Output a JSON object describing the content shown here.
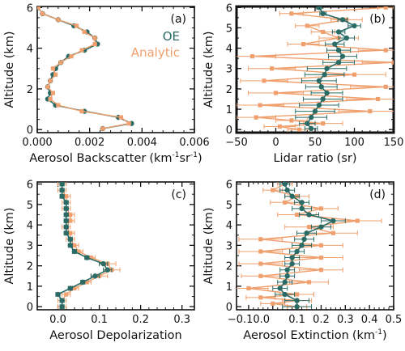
{
  "colors": {
    "oe": "#2b6b66",
    "analytic": "#f0a06e",
    "axis": "#111111"
  },
  "chart_data": [
    {
      "type": "line",
      "panel_label": "(a)",
      "xlabel": "Aerosol Backscatter",
      "xunit_prefix": "(km",
      "xunit_sup1": "-1",
      "xunit_mid": "sr",
      "xunit_sup2": "-1",
      "xunit_suffix": ")",
      "ylabel": "Altitude (km)",
      "xlim": [
        0.0,
        0.006
      ],
      "ylim": [
        -0.15,
        6.05
      ],
      "xticks": [
        0.0,
        0.002,
        0.004,
        0.006
      ],
      "xtick_labels": [
        "0.000",
        "0.002",
        "0.004",
        "0.006"
      ],
      "yticks": [
        0,
        2,
        4,
        6
      ],
      "ytick_labels": [
        "0",
        "2",
        "4",
        "6"
      ],
      "legend": {
        "placement": "right",
        "entries": [
          "OE",
          "Analytic"
        ]
      },
      "series": [
        {
          "name": "OE",
          "style": "line-dots",
          "y": [
            0.05,
            0.3,
            0.6,
            0.9,
            1.2,
            1.5,
            1.8,
            2.1,
            2.4,
            2.7,
            3.0,
            3.3,
            3.6,
            3.9,
            4.2,
            4.5,
            4.8,
            5.1,
            5.4,
            5.7,
            6.0
          ],
          "x": [
            0.0025,
            0.0036,
            0.0031,
            0.0018,
            0.0007,
            0.0004,
            0.0005,
            0.0004,
            0.0005,
            0.0006,
            0.0007,
            0.0009,
            0.0012,
            0.0018,
            0.0023,
            0.0022,
            0.0019,
            0.0014,
            0.0008,
            0.0002,
            3e-05
          ]
        },
        {
          "name": "Analytic",
          "style": "line-squares",
          "y": [
            0.05,
            0.3,
            0.6,
            0.9,
            1.2,
            1.5,
            1.8,
            2.1,
            2.4,
            2.7,
            3.0,
            3.3,
            3.6,
            3.9,
            4.2,
            4.5,
            4.8,
            5.1,
            5.4,
            5.7,
            6.0
          ],
          "x": [
            0.0025,
            0.0035,
            0.0032,
            0.0017,
            0.0008,
            0.0005,
            0.0006,
            0.0004,
            0.0005,
            0.0007,
            0.0006,
            0.0009,
            0.0013,
            0.0017,
            0.0022,
            0.0022,
            0.0018,
            0.0015,
            0.0008,
            0.0002,
            4e-05
          ]
        }
      ]
    },
    {
      "type": "line",
      "panel_label": "(b)",
      "xlabel": "Lidar ratio",
      "xunit": "(sr)",
      "ylabel": "Altitude (km)",
      "xlim": [
        -50,
        150
      ],
      "ylim": [
        -0.15,
        6.05
      ],
      "xticks": [
        -50,
        0,
        50,
        100,
        150
      ],
      "xtick_labels": [
        "−50",
        "0",
        "50",
        "100",
        "150"
      ],
      "yticks": [
        0,
        1,
        2,
        3,
        4,
        5,
        6
      ],
      "ytick_labels": [
        "0",
        "1",
        "2",
        "3",
        "4",
        "5",
        "6"
      ],
      "series": [
        {
          "name": "Analytic",
          "style": "line-squares",
          "y": [
            0.0,
            0.15,
            0.3,
            0.45,
            0.6,
            0.9,
            1.2,
            1.5,
            1.8,
            2.1,
            2.4,
            2.7,
            3.0,
            3.3,
            3.6,
            3.9,
            4.2,
            4.5,
            4.8,
            5.1,
            5.4,
            5.7,
            6.0
          ],
          "x": [
            30,
            5,
            60,
            20,
            -25,
            120,
            -20,
            130,
            0,
            140,
            -15,
            100,
            -5,
            150,
            -30,
            140,
            35,
            80,
            60,
            40,
            90,
            20,
            140
          ],
          "xerr": [
            15,
            20,
            25,
            20,
            25,
            40,
            30,
            40,
            35,
            45,
            30,
            40,
            30,
            40,
            30,
            35,
            20,
            25,
            15,
            15,
            20,
            15,
            10
          ]
        },
        {
          "name": "OE",
          "style": "line-dots",
          "y": [
            0.05,
            0.3,
            0.6,
            0.9,
            1.2,
            1.5,
            1.8,
            2.1,
            2.4,
            2.7,
            3.0,
            3.3,
            3.6,
            3.9,
            4.2,
            4.5,
            4.8,
            5.1,
            5.4,
            5.7,
            6.0
          ],
          "x": [
            45,
            40,
            45,
            50,
            55,
            60,
            65,
            58,
            55,
            62,
            65,
            80,
            85,
            80,
            75,
            90,
            80,
            100,
            85,
            60,
            55
          ],
          "xerr": [
            8,
            10,
            20,
            25,
            25,
            25,
            20,
            20,
            22,
            25,
            25,
            20,
            18,
            15,
            12,
            10,
            8,
            8,
            6,
            4,
            3
          ]
        }
      ]
    },
    {
      "type": "line",
      "panel_label": "(c)",
      "xlabel": "Aerosol Depolarization",
      "ylabel": "Altitude (km)",
      "xlim": [
        -0.05,
        0.33
      ],
      "ylim": [
        -0.15,
        6.1
      ],
      "xticks": [
        0.0,
        0.1,
        0.2,
        0.3
      ],
      "xtick_labels": [
        "0.0",
        "0.1",
        "0.2",
        "0.3"
      ],
      "yticks": [
        0,
        1,
        2,
        3,
        4,
        5,
        6
      ],
      "ytick_labels": [
        "0",
        "1",
        "2",
        "3",
        "4",
        "5",
        "6"
      ],
      "series": [
        {
          "name": "Analytic",
          "style": "line-squares",
          "y": [
            0.0,
            0.3,
            0.6,
            0.9,
            1.2,
            1.5,
            1.8,
            2.1,
            2.4,
            2.7,
            3.0,
            3.3,
            3.6,
            3.9,
            4.2,
            4.5,
            4.8,
            5.1,
            5.4,
            5.7,
            6.0
          ],
          "x": [
            0.01,
            0.01,
            0.02,
            0.04,
            0.07,
            0.1,
            0.13,
            0.12,
            0.08,
            0.05,
            0.04,
            0.03,
            0.03,
            0.02,
            0.03,
            0.03,
            0.02,
            0.02,
            0.02,
            0.01,
            0.01
          ],
          "xerr": [
            0.01,
            0.01,
            0.01,
            0.01,
            0.01,
            0.02,
            0.02,
            0.02,
            0.01,
            0.01,
            0.01,
            0.01,
            0.01,
            0.01,
            0.01,
            0.01,
            0.01,
            0.01,
            0.01,
            0.01,
            0.01
          ]
        },
        {
          "name": "OE",
          "style": "line-dots",
          "y": [
            0.0,
            0.3,
            0.6,
            0.9,
            1.2,
            1.5,
            1.8,
            2.1,
            2.4,
            2.7,
            3.0,
            3.3,
            3.6,
            3.9,
            4.2,
            4.5,
            4.8,
            5.1,
            5.4,
            5.7,
            6.0
          ],
          "x": [
            0.01,
            0.01,
            0.0,
            0.03,
            0.06,
            0.09,
            0.12,
            0.11,
            0.07,
            0.04,
            0.03,
            0.03,
            0.02,
            0.02,
            0.02,
            0.02,
            0.02,
            0.02,
            0.01,
            0.01,
            0.01
          ],
          "xerr": [
            0.005,
            0.005,
            0.005,
            0.005,
            0.005,
            0.01,
            0.01,
            0.01,
            0.005,
            0.005,
            0.005,
            0.005,
            0.005,
            0.005,
            0.005,
            0.005,
            0.005,
            0.005,
            0.005,
            0.005,
            0.005
          ]
        }
      ]
    },
    {
      "type": "line",
      "panel_label": "(d)",
      "xlabel": "Aerosol Extinction",
      "xunit_prefix": "(km",
      "xunit_sup1": "-1",
      "xunit_suffix": ")",
      "ylabel": "Altitude (km)",
      "xlim": [
        -0.15,
        0.5
      ],
      "ylim": [
        -0.15,
        6.1
      ],
      "xticks": [
        -0.1,
        0.0,
        0.1,
        0.2,
        0.3,
        0.4,
        0.5
      ],
      "xtick_labels": [
        "−0.10.0",
        "",
        "0.1",
        "0.2",
        "0.3",
        "0.4",
        "0.5"
      ],
      "yticks": [
        0,
        1,
        2,
        3,
        4,
        5,
        6
      ],
      "ytick_labels": [
        "0",
        "1",
        "2",
        "3",
        "4",
        "5",
        "6"
      ],
      "series": [
        {
          "name": "Analytic",
          "style": "line-squares",
          "y": [
            0.0,
            0.15,
            0.3,
            0.45,
            0.6,
            0.9,
            1.2,
            1.5,
            1.8,
            2.1,
            2.4,
            2.7,
            3.0,
            3.3,
            3.6,
            3.9,
            4.2,
            4.5,
            4.8,
            5.1,
            5.4,
            5.7,
            6.0
          ],
          "x": [
            0.1,
            0.0,
            0.1,
            -0.05,
            0.1,
            -0.1,
            0.15,
            -0.05,
            0.2,
            -0.05,
            0.2,
            -0.05,
            0.2,
            -0.05,
            0.25,
            0.15,
            0.35,
            0.1,
            0.2,
            0.05,
            0.1,
            0.0,
            0.05
          ],
          "xerr": [
            0.04,
            0.05,
            0.06,
            0.06,
            0.07,
            0.08,
            0.08,
            0.08,
            0.09,
            0.09,
            0.09,
            0.09,
            0.09,
            0.09,
            0.1,
            0.1,
            0.1,
            0.08,
            0.07,
            0.06,
            0.05,
            0.04,
            0.03
          ]
        },
        {
          "name": "OE",
          "style": "line-dots",
          "y": [
            0.0,
            0.3,
            0.6,
            0.9,
            1.2,
            1.5,
            1.8,
            2.1,
            2.4,
            2.7,
            3.0,
            3.3,
            3.6,
            3.9,
            4.2,
            4.5,
            4.8,
            5.1,
            5.4,
            5.7,
            6.0
          ],
          "x": [
            0.1,
            0.1,
            0.05,
            0.03,
            0.05,
            0.06,
            0.06,
            0.08,
            0.08,
            0.1,
            0.12,
            0.13,
            0.14,
            0.2,
            0.25,
            0.15,
            0.12,
            0.12,
            0.08,
            0.06,
            0.05
          ],
          "xerr": [
            0.06,
            0.05,
            0.04,
            0.03,
            0.03,
            0.03,
            0.03,
            0.03,
            0.03,
            0.03,
            0.04,
            0.04,
            0.04,
            0.04,
            0.05,
            0.04,
            0.04,
            0.03,
            0.03,
            0.03,
            0.02
          ]
        }
      ]
    }
  ]
}
